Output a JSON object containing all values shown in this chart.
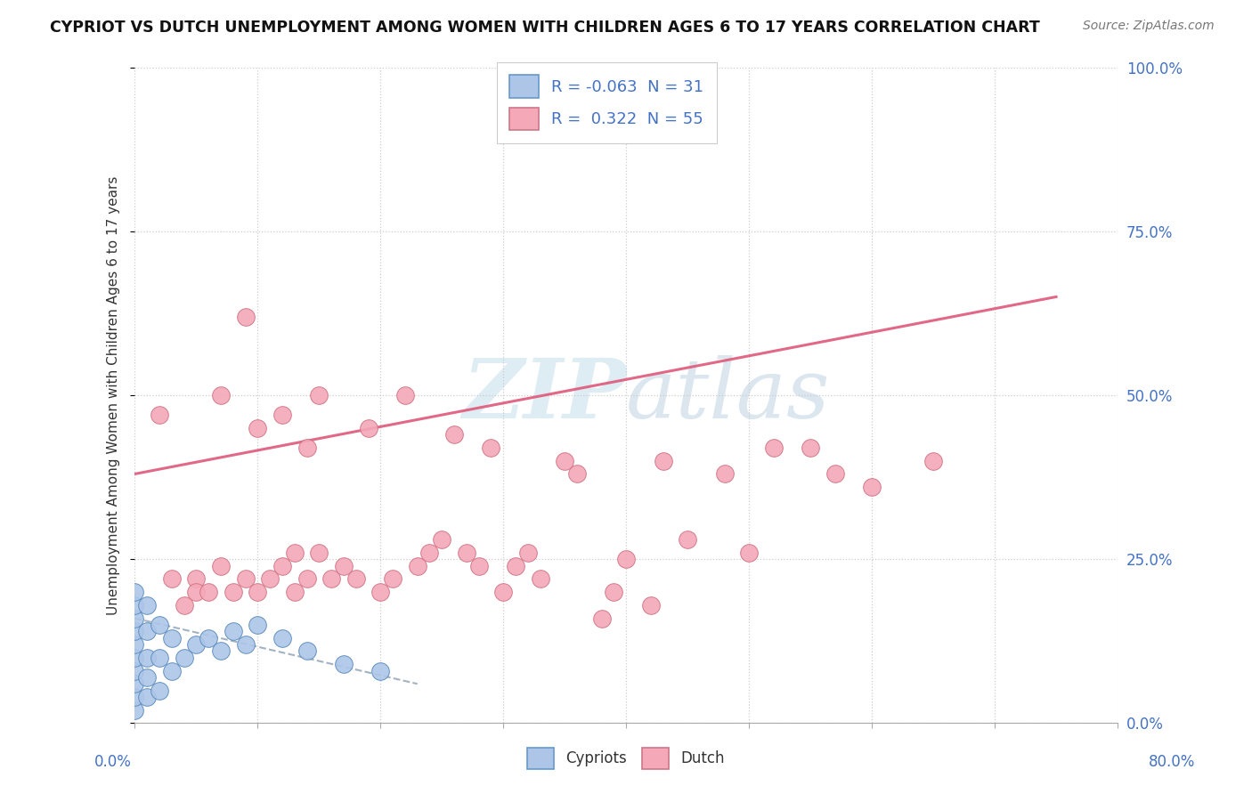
{
  "title": "CYPRIOT VS DUTCH UNEMPLOYMENT AMONG WOMEN WITH CHILDREN AGES 6 TO 17 YEARS CORRELATION CHART",
  "source": "Source: ZipAtlas.com",
  "ylabel": "Unemployment Among Women with Children Ages 6 to 17 years",
  "ytick_values": [
    0.0,
    0.25,
    0.5,
    0.75,
    1.0
  ],
  "xlim": [
    0.0,
    0.8
  ],
  "ylim": [
    0.0,
    1.0
  ],
  "legend_r_cypriot": "-0.063",
  "legend_n_cypriot": "31",
  "legend_r_dutch": "0.322",
  "legend_n_dutch": "55",
  "cypriot_color": "#adc6e8",
  "dutch_color": "#f4a8b8",
  "cypriot_edge_color": "#5588bb",
  "dutch_edge_color": "#d07080",
  "trendline_cypriot_color": "#99aabb",
  "trendline_dutch_color": "#e06080",
  "watermark_color": "#d0e4f0",
  "background_color": "#ffffff",
  "cypriot_points_x": [
    0.0,
    0.0,
    0.0,
    0.0,
    0.0,
    0.0,
    0.0,
    0.0,
    0.0,
    0.0,
    0.01,
    0.01,
    0.01,
    0.01,
    0.01,
    0.02,
    0.02,
    0.02,
    0.03,
    0.03,
    0.04,
    0.05,
    0.06,
    0.07,
    0.08,
    0.09,
    0.1,
    0.12,
    0.14,
    0.17,
    0.2
  ],
  "cypriot_points_y": [
    0.02,
    0.04,
    0.06,
    0.08,
    0.1,
    0.12,
    0.14,
    0.16,
    0.18,
    0.2,
    0.04,
    0.07,
    0.1,
    0.14,
    0.18,
    0.05,
    0.1,
    0.15,
    0.08,
    0.13,
    0.1,
    0.12,
    0.13,
    0.11,
    0.14,
    0.12,
    0.15,
    0.13,
    0.11,
    0.09,
    0.08
  ],
  "dutch_points_x": [
    0.02,
    0.03,
    0.04,
    0.05,
    0.05,
    0.06,
    0.07,
    0.07,
    0.08,
    0.09,
    0.09,
    0.1,
    0.1,
    0.11,
    0.12,
    0.12,
    0.13,
    0.13,
    0.14,
    0.14,
    0.15,
    0.15,
    0.16,
    0.17,
    0.18,
    0.19,
    0.2,
    0.21,
    0.22,
    0.23,
    0.24,
    0.25,
    0.26,
    0.27,
    0.28,
    0.29,
    0.3,
    0.31,
    0.32,
    0.33,
    0.35,
    0.36,
    0.38,
    0.39,
    0.4,
    0.42,
    0.43,
    0.45,
    0.48,
    0.5,
    0.52,
    0.55,
    0.57,
    0.6,
    0.65
  ],
  "dutch_points_y": [
    0.47,
    0.22,
    0.18,
    0.22,
    0.2,
    0.2,
    0.24,
    0.5,
    0.2,
    0.22,
    0.62,
    0.2,
    0.45,
    0.22,
    0.24,
    0.47,
    0.26,
    0.2,
    0.42,
    0.22,
    0.26,
    0.5,
    0.22,
    0.24,
    0.22,
    0.45,
    0.2,
    0.22,
    0.5,
    0.24,
    0.26,
    0.28,
    0.44,
    0.26,
    0.24,
    0.42,
    0.2,
    0.24,
    0.26,
    0.22,
    0.4,
    0.38,
    0.16,
    0.2,
    0.25,
    0.18,
    0.4,
    0.28,
    0.38,
    0.26,
    0.42,
    0.42,
    0.38,
    0.36,
    0.4
  ],
  "trendline_dutch_x_start": 0.0,
  "trendline_dutch_y_start": 0.38,
  "trendline_dutch_x_end": 0.75,
  "trendline_dutch_y_end": 0.65,
  "trendline_cypriot_x_start": 0.0,
  "trendline_cypriot_y_start": 0.16,
  "trendline_cypriot_x_end": 0.23,
  "trendline_cypriot_y_end": 0.06
}
